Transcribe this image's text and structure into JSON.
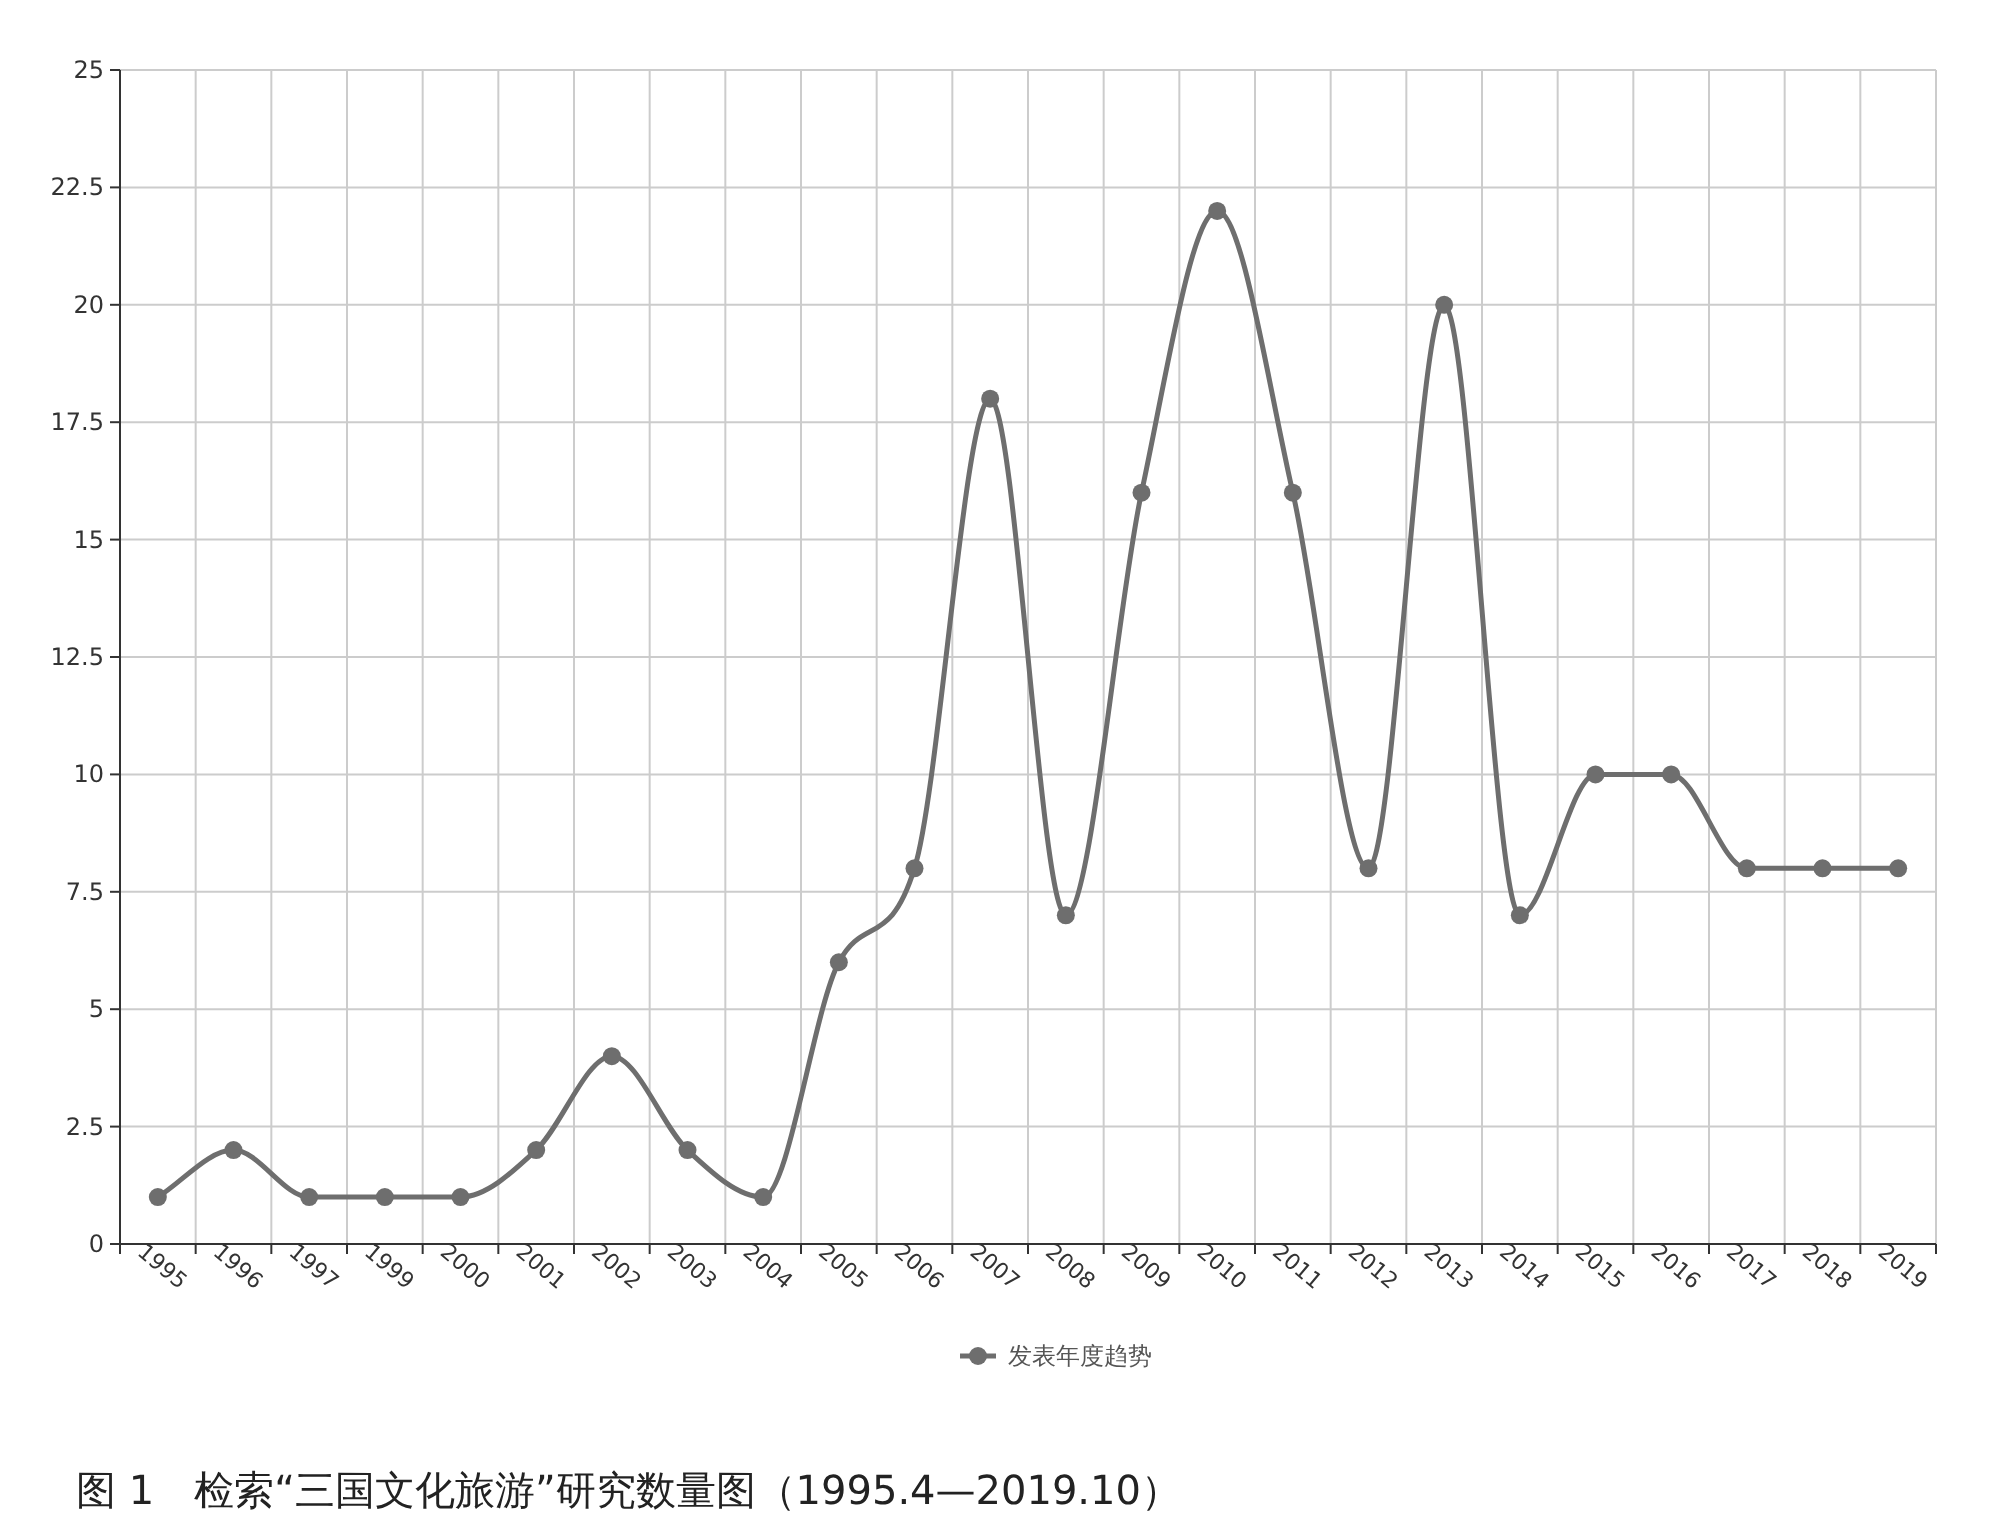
{
  "chart_data": {
    "type": "line",
    "categories": [
      "1995",
      "1996",
      "1997",
      "1999",
      "2000",
      "2001",
      "2002",
      "2003",
      "2004",
      "2005",
      "2006",
      "2007",
      "2008",
      "2009",
      "2010",
      "2011",
      "2012",
      "2013",
      "2014",
      "2015",
      "2016",
      "2017",
      "2018",
      "2019"
    ],
    "series": [
      {
        "name": "发表年度趋势",
        "color": "#6e6e6e",
        "values": [
          1,
          2,
          1,
          1,
          1,
          2,
          4,
          2,
          1,
          6,
          8,
          18,
          7,
          16,
          22,
          16,
          8,
          20,
          7,
          10,
          10,
          8,
          8,
          8
        ]
      }
    ],
    "ylim": [
      0,
      25
    ],
    "yticks": [
      0,
      2.5,
      5,
      7.5,
      10,
      12.5,
      15,
      17.5,
      20,
      22.5,
      25
    ],
    "grid": true,
    "legend": "bottom",
    "marker": "circle",
    "annotations": [
      "图 1　检索“三国文化旅游”研究数量图（1995.4—2019.10）"
    ]
  }
}
